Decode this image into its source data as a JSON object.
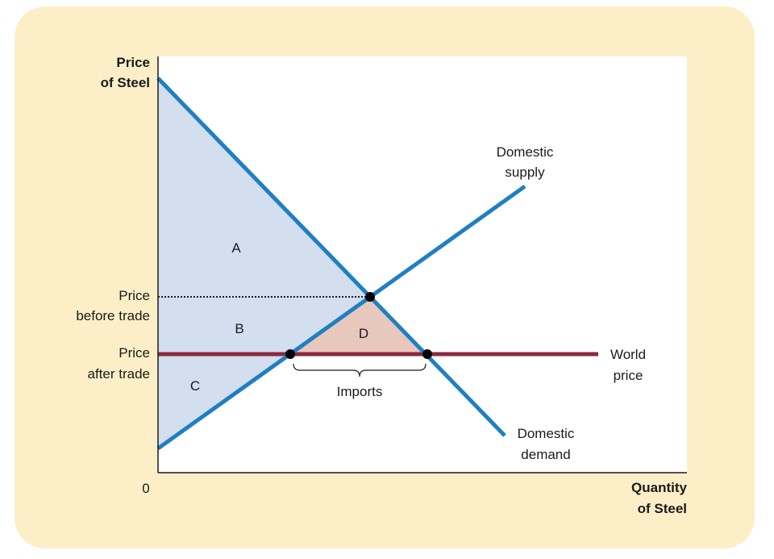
{
  "axes": {
    "y_title": [
      "Price",
      "of Steel"
    ],
    "x_title": [
      "Quantity",
      "of Steel"
    ],
    "origin": "0"
  },
  "price_labels": {
    "before_trade": [
      "Price",
      "before trade"
    ],
    "after_trade": [
      "Price",
      "after trade"
    ]
  },
  "curves": {
    "supply": [
      "Domestic",
      "supply"
    ],
    "demand": [
      "Domestic",
      "demand"
    ],
    "world_price": [
      "World",
      "price"
    ]
  },
  "areas": {
    "a": "A",
    "b": "B",
    "c": "C",
    "d": "D"
  },
  "imports_label": "Imports",
  "colors": {
    "frame": "#fcefc7",
    "curve": "#1f7fc4",
    "world_price_line": "#8b2a3e",
    "surplus_fill": "#d3deef",
    "area_d_fill": "#e8c8bd"
  }
}
